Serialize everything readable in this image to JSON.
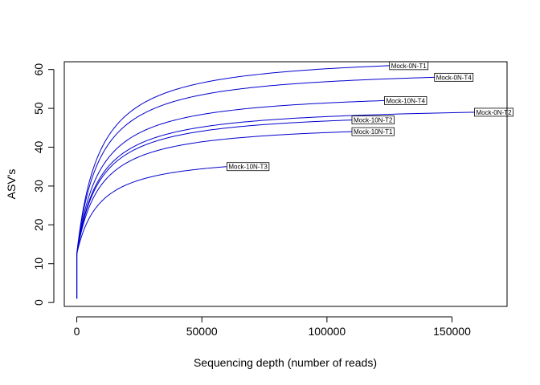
{
  "chart_data": {
    "type": "line",
    "title": "",
    "xlabel": "Sequencing depth (number of reads)",
    "ylabel": "ASV's",
    "xlim": [
      -5000,
      172000
    ],
    "ylim": [
      -1,
      62
    ],
    "xticks": [
      0,
      50000,
      100000,
      150000
    ],
    "xtick_labels": [
      "0",
      "50000",
      "100000",
      "150000"
    ],
    "yticks": [
      0,
      10,
      20,
      30,
      40,
      50,
      60
    ],
    "ytick_labels": [
      "0",
      "10",
      "20",
      "30",
      "40",
      "50",
      "60"
    ],
    "grid": false,
    "legend": "none",
    "line_color": "#0000CD",
    "series": [
      {
        "name": "Mock-0N-T1",
        "max_depth": 125000,
        "final_asvs": 61
      },
      {
        "name": "Mock-0N-T4",
        "max_depth": 143000,
        "final_asvs": 58
      },
      {
        "name": "Mock-10N-T4",
        "max_depth": 123000,
        "final_asvs": 52
      },
      {
        "name": "Mock-0N-T2",
        "max_depth": 159000,
        "final_asvs": 49
      },
      {
        "name": "Mock-10N-T2",
        "max_depth": 110000,
        "final_asvs": 47
      },
      {
        "name": "Mock-10N-T1",
        "max_depth": 110000,
        "final_asvs": 44
      },
      {
        "name": "Mock-10N-T3",
        "max_depth": 60000,
        "final_asvs": 35
      }
    ]
  }
}
